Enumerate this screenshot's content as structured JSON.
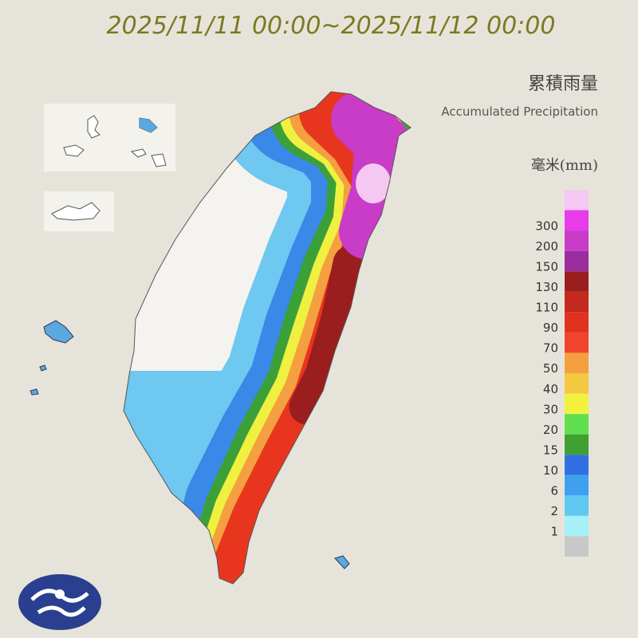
{
  "header": {
    "title": "2025/11/11 00:00~2025/11/12 00:00"
  },
  "legend": {
    "title_zh": "累積雨量",
    "title_en": "Accumulated Precipitation",
    "unit": "毫米(mm)",
    "levels": [
      {
        "value": null,
        "color": "#f4c8f2"
      },
      {
        "value": 300,
        "color": "#e83ce8"
      },
      {
        "value": 200,
        "color": "#c83cc8"
      },
      {
        "value": 150,
        "color": "#9a2e9e"
      },
      {
        "value": 130,
        "color": "#9a1e1e"
      },
      {
        "value": 110,
        "color": "#c4281e"
      },
      {
        "value": 90,
        "color": "#e0321e"
      },
      {
        "value": 70,
        "color": "#f0442c"
      },
      {
        "value": 50,
        "color": "#f4a040"
      },
      {
        "value": 40,
        "color": "#f4c840"
      },
      {
        "value": 30,
        "color": "#f4f040"
      },
      {
        "value": 20,
        "color": "#60e050"
      },
      {
        "value": 15,
        "color": "#40a030"
      },
      {
        "value": 10,
        "color": "#3070e0"
      },
      {
        "value": 6,
        "color": "#40a0f0"
      },
      {
        "value": 2,
        "color": "#60c8f0"
      },
      {
        "value": 1,
        "color": "#a8f0f8"
      },
      {
        "value": null,
        "color": "#c8c8c8"
      }
    ]
  }
}
